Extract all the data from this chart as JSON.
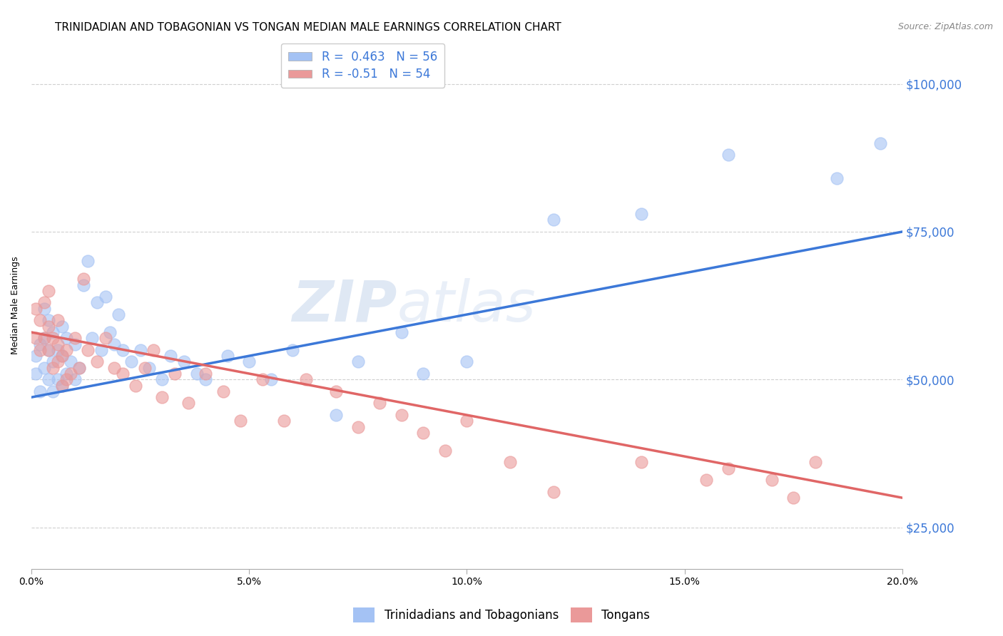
{
  "title": "TRINIDADIAN AND TOBAGONIAN VS TONGAN MEDIAN MALE EARNINGS CORRELATION CHART",
  "source": "Source: ZipAtlas.com",
  "ylabel": "Median Male Earnings",
  "watermark": "ZIPatlas",
  "xlim": [
    0,
    0.2
  ],
  "ylim": [
    18000,
    107000
  ],
  "yticks": [
    25000,
    50000,
    75000,
    100000
  ],
  "xticks": [
    0.0,
    0.05,
    0.1,
    0.15,
    0.2
  ],
  "xtick_labels": [
    "0.0%",
    "5.0%",
    "10.0%",
    "15.0%",
    "20.0%"
  ],
  "ytick_labels": [
    "$25,000",
    "$50,000",
    "$75,000",
    "$100,000"
  ],
  "blue_color": "#a4c2f4",
  "pink_color": "#ea9999",
  "blue_line_color": "#3c78d8",
  "pink_line_color": "#e06666",
  "axis_color": "#3c78d8",
  "R_blue": 0.463,
  "N_blue": 56,
  "R_pink": -0.51,
  "N_pink": 54,
  "legend_label_blue": "Trinidadians and Tobagonians",
  "legend_label_pink": "Tongans",
  "blue_scatter_x": [
    0.001,
    0.001,
    0.002,
    0.002,
    0.003,
    0.003,
    0.003,
    0.004,
    0.004,
    0.004,
    0.005,
    0.005,
    0.005,
    0.006,
    0.006,
    0.007,
    0.007,
    0.007,
    0.008,
    0.008,
    0.009,
    0.01,
    0.01,
    0.011,
    0.012,
    0.013,
    0.014,
    0.015,
    0.016,
    0.017,
    0.018,
    0.019,
    0.02,
    0.021,
    0.023,
    0.025,
    0.027,
    0.03,
    0.032,
    0.035,
    0.038,
    0.04,
    0.045,
    0.05,
    0.055,
    0.06,
    0.07,
    0.075,
    0.085,
    0.09,
    0.1,
    0.12,
    0.14,
    0.16,
    0.185,
    0.195
  ],
  "blue_scatter_y": [
    51000,
    54000,
    48000,
    56000,
    52000,
    57000,
    62000,
    50000,
    55000,
    60000,
    48000,
    53000,
    58000,
    50000,
    55000,
    49000,
    54000,
    59000,
    51000,
    57000,
    53000,
    50000,
    56000,
    52000,
    66000,
    70000,
    57000,
    63000,
    55000,
    64000,
    58000,
    56000,
    61000,
    55000,
    53000,
    55000,
    52000,
    50000,
    54000,
    53000,
    51000,
    50000,
    54000,
    53000,
    50000,
    55000,
    44000,
    53000,
    58000,
    51000,
    53000,
    77000,
    78000,
    88000,
    84000,
    90000
  ],
  "pink_scatter_x": [
    0.001,
    0.001,
    0.002,
    0.002,
    0.003,
    0.003,
    0.004,
    0.004,
    0.004,
    0.005,
    0.005,
    0.006,
    0.006,
    0.006,
    0.007,
    0.007,
    0.008,
    0.008,
    0.009,
    0.01,
    0.011,
    0.012,
    0.013,
    0.015,
    0.017,
    0.019,
    0.021,
    0.024,
    0.026,
    0.028,
    0.03,
    0.033,
    0.036,
    0.04,
    0.044,
    0.048,
    0.053,
    0.058,
    0.063,
    0.07,
    0.075,
    0.08,
    0.085,
    0.09,
    0.095,
    0.1,
    0.11,
    0.12,
    0.14,
    0.155,
    0.16,
    0.17,
    0.175,
    0.18
  ],
  "pink_scatter_y": [
    57000,
    62000,
    55000,
    60000,
    63000,
    57000,
    55000,
    59000,
    65000,
    52000,
    57000,
    53000,
    56000,
    60000,
    49000,
    54000,
    50000,
    55000,
    51000,
    57000,
    52000,
    67000,
    55000,
    53000,
    57000,
    52000,
    51000,
    49000,
    52000,
    55000,
    47000,
    51000,
    46000,
    51000,
    48000,
    43000,
    50000,
    43000,
    50000,
    48000,
    42000,
    46000,
    44000,
    41000,
    38000,
    43000,
    36000,
    31000,
    36000,
    33000,
    35000,
    33000,
    30000,
    36000
  ],
  "blue_trendline_x": [
    0.0,
    0.2
  ],
  "blue_trendline_y": [
    47000,
    75000
  ],
  "pink_trendline_x": [
    0.0,
    0.2
  ],
  "pink_trendline_y": [
    58000,
    30000
  ],
  "background_color": "#ffffff",
  "grid_color": "#d0d0d0",
  "title_fontsize": 11,
  "axis_label_fontsize": 9,
  "tick_fontsize": 10,
  "legend_fontsize": 12
}
